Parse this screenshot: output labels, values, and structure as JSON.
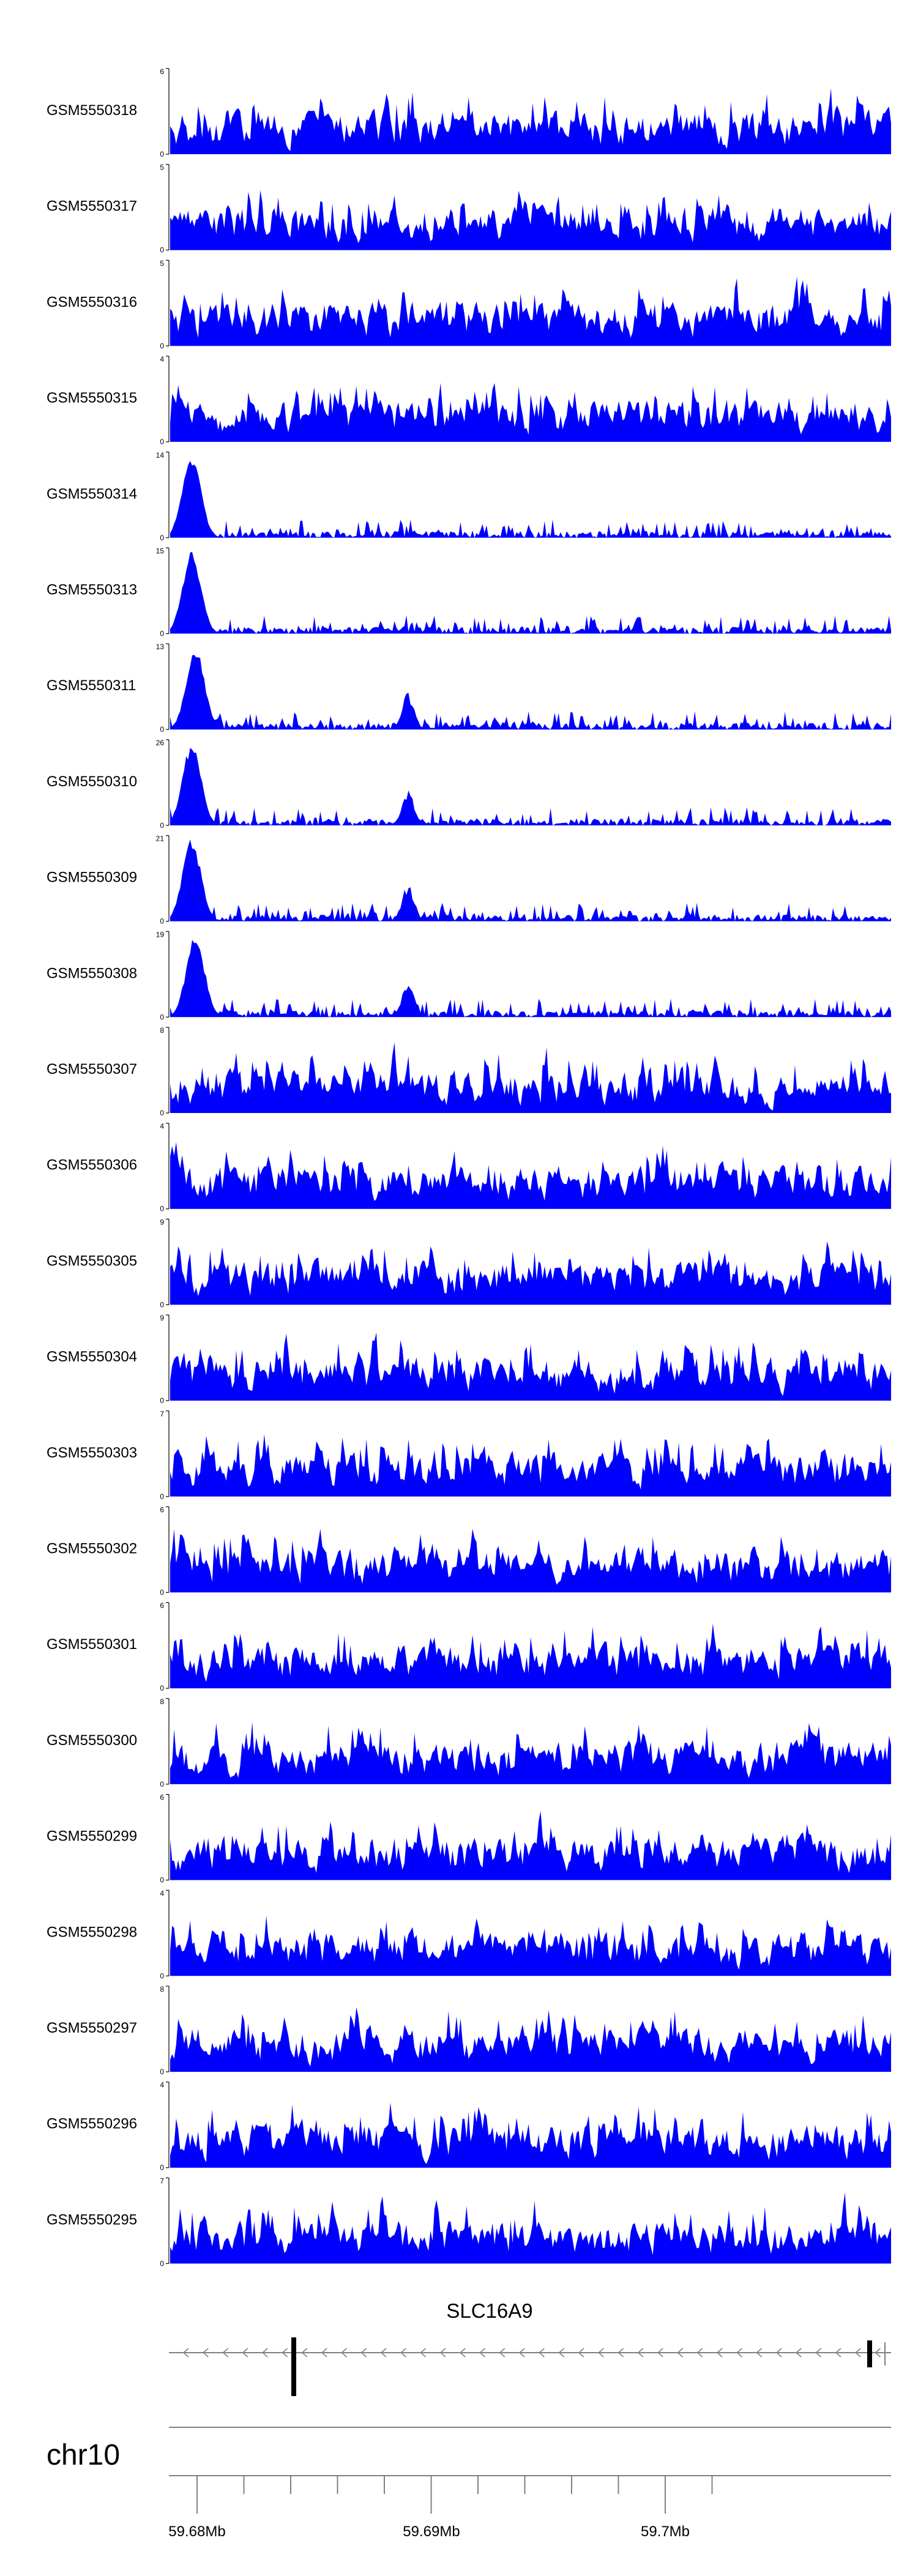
{
  "chart_data": {
    "type": "area",
    "color": "#0000ff",
    "series": [
      {
        "name": "GSM5550318",
        "ymax": 6
      },
      {
        "name": "GSM5550317",
        "ymax": 5
      },
      {
        "name": "GSM5550316",
        "ymax": 5
      },
      {
        "name": "GSM5550315",
        "ymax": 4
      },
      {
        "name": "GSM5550314",
        "ymax": 14
      },
      {
        "name": "GSM5550313",
        "ymax": 15
      },
      {
        "name": "GSM5550311",
        "ymax": 13
      },
      {
        "name": "GSM5550310",
        "ymax": 26
      },
      {
        "name": "GSM5550309",
        "ymax": 21
      },
      {
        "name": "GSM5550308",
        "ymax": 19
      },
      {
        "name": "GSM5550307",
        "ymax": 8
      },
      {
        "name": "GSM5550306",
        "ymax": 4
      },
      {
        "name": "GSM5550305",
        "ymax": 9
      },
      {
        "name": "GSM5550304",
        "ymax": 9
      },
      {
        "name": "GSM5550303",
        "ymax": 7
      },
      {
        "name": "GSM5550302",
        "ymax": 6
      },
      {
        "name": "GSM5550301",
        "ymax": 6
      },
      {
        "name": "GSM5550300",
        "ymax": 8
      },
      {
        "name": "GSM5550299",
        "ymax": 6
      },
      {
        "name": "GSM5550298",
        "ymax": 4
      },
      {
        "name": "GSM5550297",
        "ymax": 8
      },
      {
        "name": "GSM5550296",
        "ymax": 4
      },
      {
        "name": "GSM5550295",
        "ymax": 7
      }
    ],
    "ymin_label": "0",
    "gene": {
      "name": "SLC16A9",
      "strand": "-"
    },
    "chromosome": "chr10",
    "x_ticks": [
      "59.68Mb",
      "59.69Mb",
      "59.7Mb"
    ]
  }
}
